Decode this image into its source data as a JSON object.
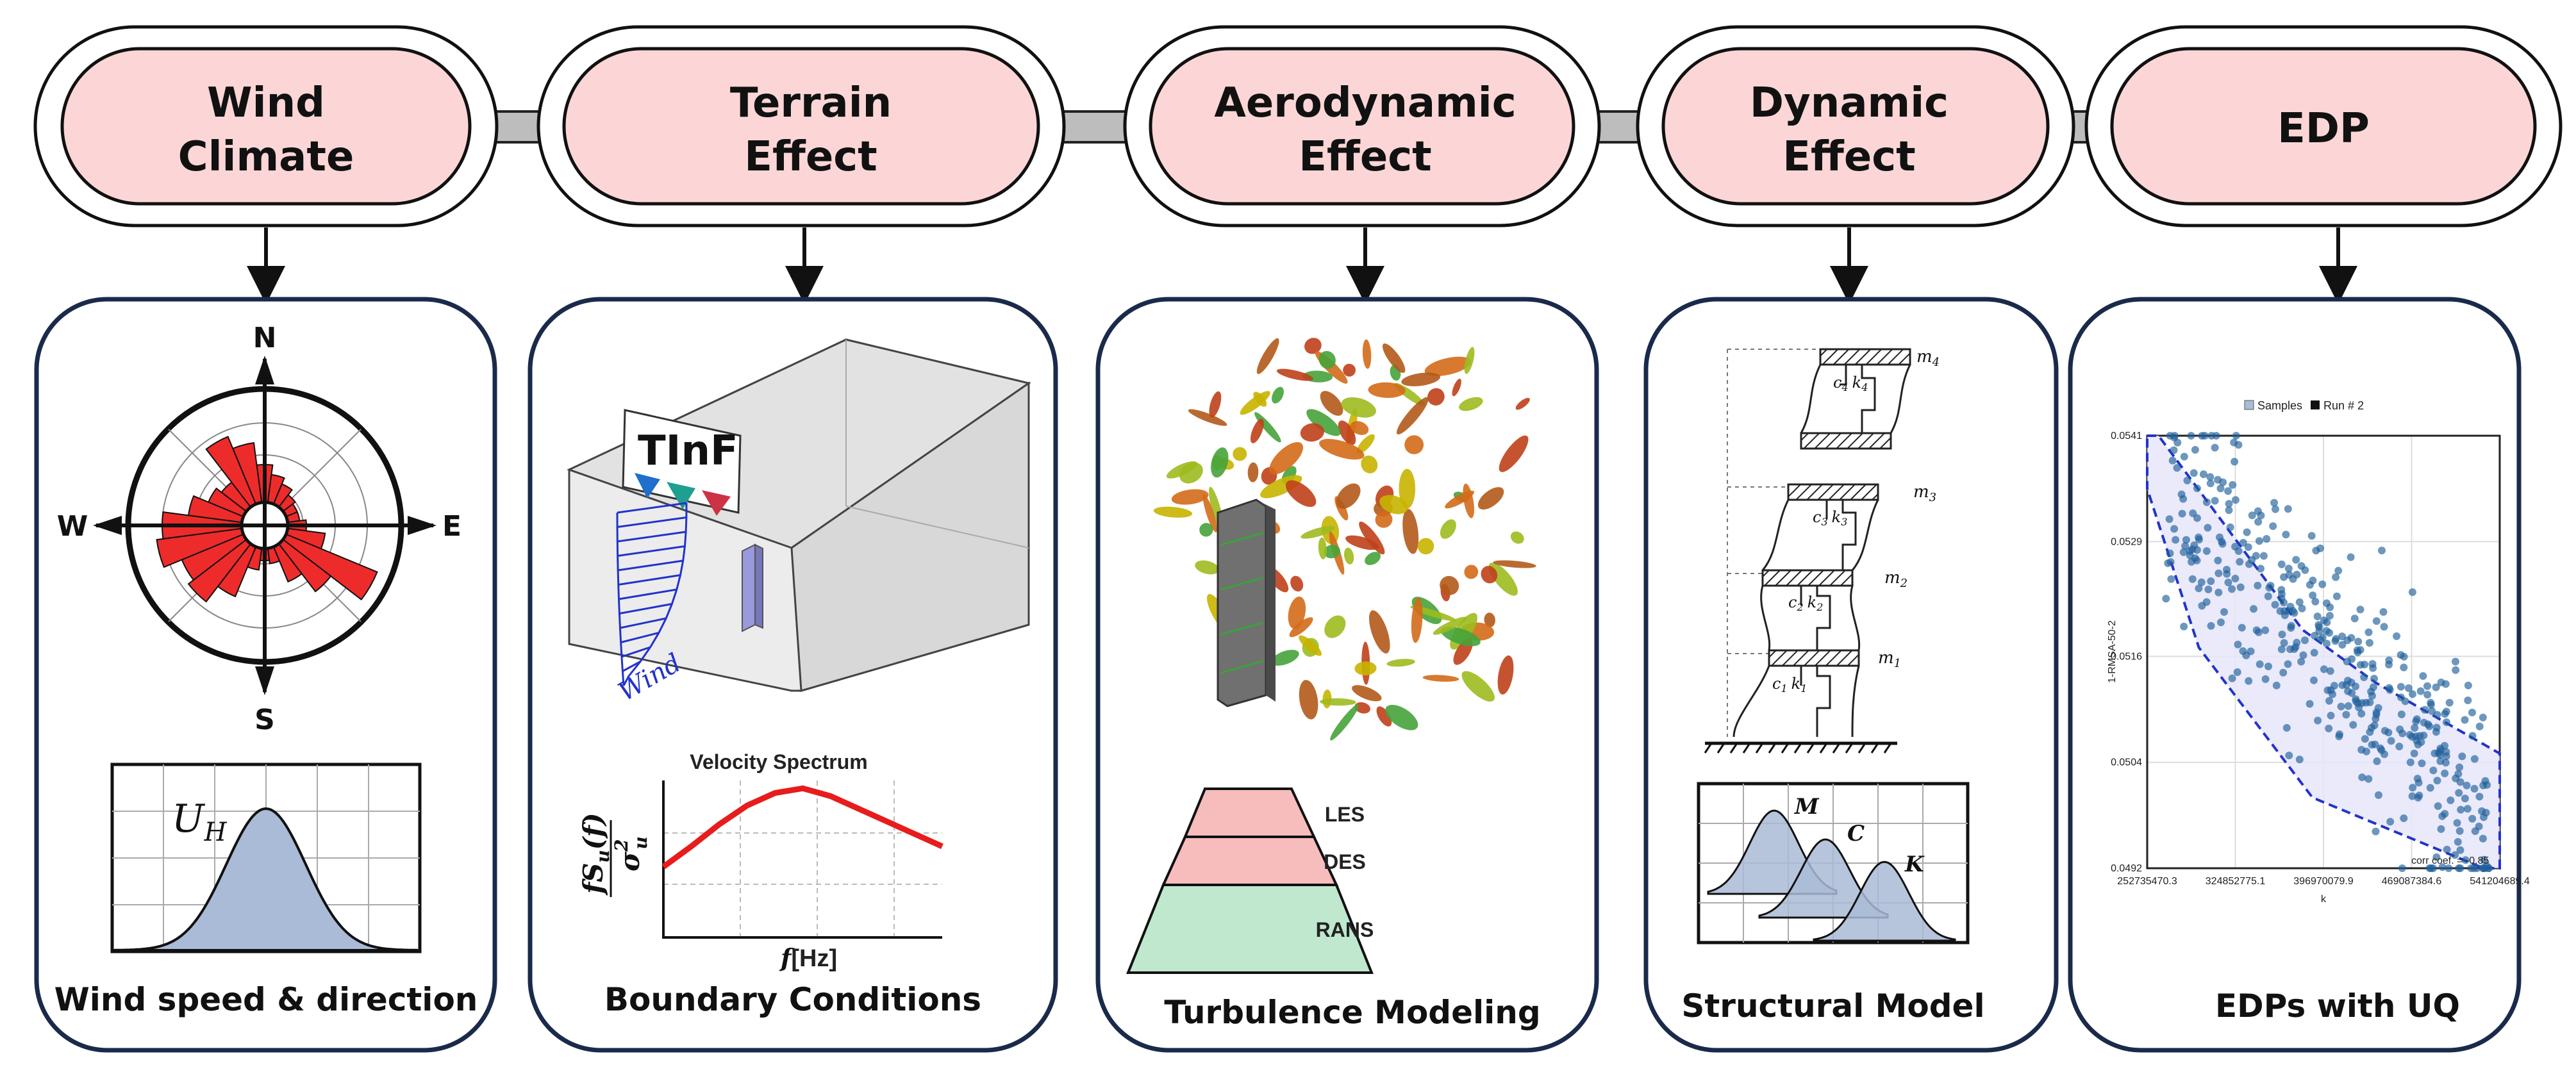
{
  "colors": {
    "stage_fill": "#fcd6d6",
    "panel_border": "#1a2a4a",
    "connector": "#bdbdbd",
    "rose_red": "#ee2b2b",
    "spectrum_red": "#e81c1c",
    "les_fill": "#f7bcbc",
    "rans_fill": "#bfe8cf",
    "hull_fill": "#e6e6fa",
    "hull_stroke": "#2233cc",
    "point": "#1f5f99",
    "dist_fill": "#a9bbd6"
  },
  "stages": [
    {
      "line1": "Wind",
      "line2": "Climate"
    },
    {
      "line1": "Terrain",
      "line2": "Effect"
    },
    {
      "line1": "Aerodynamic",
      "line2": "Effect"
    },
    {
      "line1": "Dynamic",
      "line2": "Effect"
    },
    {
      "line1": "EDP",
      "line2": ""
    }
  ],
  "panels": {
    "wind": {
      "compass": {
        "n": "N",
        "s": "S",
        "e": "E",
        "w": "W"
      },
      "uh_label": "U",
      "uh_sub": "H",
      "caption": "Wind speed & direction"
    },
    "terrain": {
      "logo": "TInF",
      "wind_label": "Wind",
      "spectrum_title": "Velocity Spectrum",
      "y_label_num": "fS",
      "y_label_sub": "u",
      "y_label_paren": "(f)",
      "y_label_den": "σ",
      "y_label_den_sup": "2",
      "y_label_den_sub": "u",
      "x_label_f": "f",
      "x_label_unit": "[Hz]",
      "caption": "Boundary Conditions"
    },
    "aero": {
      "pyramid": [
        "LES",
        "DES",
        "RANS"
      ],
      "caption": "Turbulence Modeling"
    },
    "dynamic": {
      "masses": [
        "m",
        "m",
        "m",
        "m"
      ],
      "mass_subs": [
        "4",
        "3",
        "2",
        "1"
      ],
      "springs_c": [
        "c",
        "c",
        "c",
        "c"
      ],
      "springs_k": [
        "k",
        "k",
        "k",
        "k"
      ],
      "spring_subs": [
        "4",
        "3",
        "2",
        "1"
      ],
      "dist_labels": [
        "M",
        "C",
        "K"
      ],
      "caption": "Structural Model"
    },
    "edp": {
      "legend": [
        "Samples",
        "Run # 2"
      ],
      "y_axis_label": "1-RMSA-50-2",
      "x_axis_label": "k",
      "y_ticks": [
        "0.0541",
        "0.0529",
        "0.0516",
        "0.0504",
        "0.0492"
      ],
      "x_ticks": [
        "252735470.3",
        "324852775.1",
        "396970079.9",
        "469087384.6",
        "541204689.4"
      ],
      "corr_note": "corr coef. = -0.85",
      "caption": "EDPs with UQ"
    }
  },
  "chart_data": [
    {
      "type": "line",
      "title": "Velocity Spectrum",
      "xlabel": "f [Hz]",
      "ylabel": "fS_u(f)/σ_u²",
      "x": [
        0,
        0.1,
        0.2,
        0.3,
        0.4,
        0.5,
        0.6,
        0.7,
        0.8,
        0.9,
        1.0
      ],
      "series": [
        {
          "values": [
            0.45,
            0.58,
            0.72,
            0.84,
            0.92,
            0.95,
            0.9,
            0.82,
            0.74,
            0.66,
            0.58
          ]
        }
      ]
    },
    {
      "type": "scatter",
      "title": "",
      "xlabel": "k",
      "ylabel": "1-RMSA-50-2",
      "xlim": [
        252735470.3,
        541204689.4
      ],
      "ylim": [
        0.0492,
        0.0541
      ],
      "legend": [
        "Samples",
        "Run # 2"
      ],
      "annotation": "corr coef. = -0.85",
      "hull": [
        [
          252735470.3,
          0.0541
        ],
        [
          262000000,
          0.0541
        ],
        [
          380000000,
          0.0519
        ],
        [
          440000000,
          0.0513
        ],
        [
          541204689.4,
          0.0505
        ],
        [
          541204689.4,
          0.0492
        ],
        [
          528000000,
          0.0492
        ],
        [
          388000000,
          0.05
        ],
        [
          295000000,
          0.0517
        ],
        [
          252735470.3,
          0.0535
        ]
      ]
    }
  ]
}
